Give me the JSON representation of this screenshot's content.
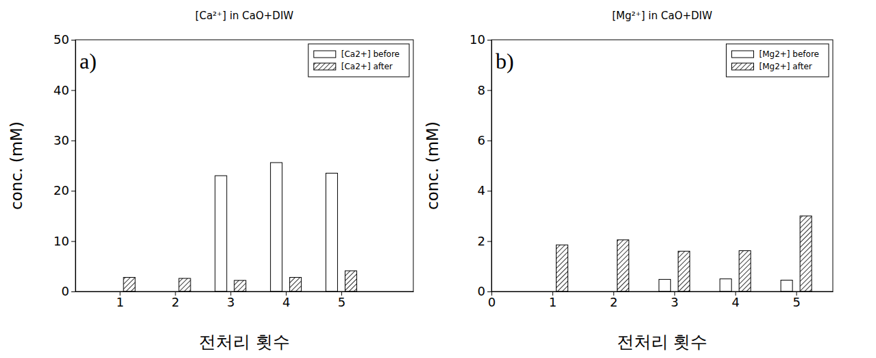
{
  "chart_data": [
    {
      "type": "bar",
      "title": "[Ca²⁺] in CaO+DIW",
      "annotation": "a)",
      "x_label": "전처리 횟수",
      "y_label": "conc. (mM)",
      "x": [
        1,
        2,
        3,
        4,
        5
      ],
      "xlim": [
        0.2,
        6.3
      ],
      "xticks": [
        1,
        2,
        3,
        4,
        5
      ],
      "ylim": [
        0,
        50
      ],
      "yticks": [
        0,
        10,
        20,
        30,
        40,
        50
      ],
      "legend": "upper right",
      "series": [
        {
          "name": "[Ca2+] before",
          "color": "#ffffff",
          "marker": "solid",
          "values": [
            null,
            null,
            23.0,
            25.6,
            23.5
          ]
        },
        {
          "name": "[Ca2+] after",
          "color": "#000000",
          "marker": "hatch",
          "values": [
            2.8,
            2.6,
            2.2,
            2.8,
            4.1
          ]
        }
      ]
    },
    {
      "type": "bar",
      "title": "[Mg²⁺] in CaO+DIW",
      "annotation": "b)",
      "x_label": "전처리 횟수",
      "y_label": "conc. (mM)",
      "x": [
        1,
        2,
        3,
        4,
        5
      ],
      "xlim": [
        0,
        5.6
      ],
      "xticks": [
        0,
        1,
        2,
        3,
        4,
        5
      ],
      "ylim": [
        0,
        10
      ],
      "yticks": [
        0,
        2,
        4,
        6,
        8,
        10
      ],
      "legend": "upper right",
      "series": [
        {
          "name": "[Mg2+] before",
          "color": "#ffffff",
          "marker": "solid",
          "values": [
            null,
            null,
            0.48,
            0.5,
            0.45
          ]
        },
        {
          "name": "[Mg2+] after",
          "color": "#000000",
          "marker": "hatch",
          "values": [
            1.85,
            2.05,
            1.6,
            1.62,
            3.0
          ]
        }
      ]
    }
  ]
}
